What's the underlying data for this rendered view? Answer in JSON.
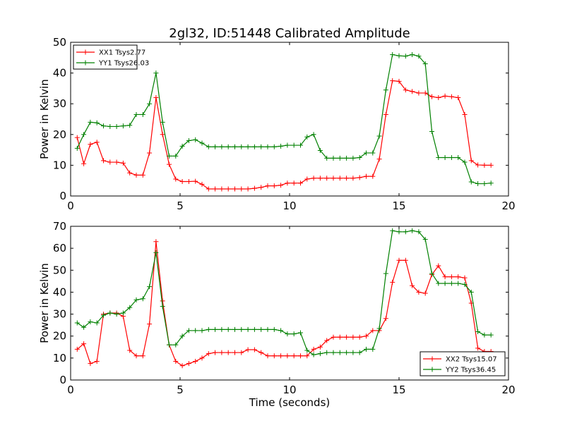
{
  "title": "2gl32, ID:51448 Calibrated Amplitude",
  "chart_data": [
    {
      "type": "line",
      "title": "2gl32, ID:51448 Calibrated Amplitude",
      "xlabel": "",
      "ylabel": "Power in Kelvin",
      "xlim": [
        0,
        20
      ],
      "ylim": [
        0,
        50
      ],
      "xticks": [
        "0",
        "5",
        "10",
        "15",
        "20"
      ],
      "yticks": [
        "0",
        "10",
        "20",
        "30",
        "40",
        "50"
      ],
      "grid": false,
      "legend_position": "upper left",
      "series": [
        {
          "name": "XX1 Tsys2.77",
          "color": "#ff0000",
          "marker": "plus",
          "x": [
            0.3,
            0.6,
            0.9,
            1.2,
            1.5,
            1.8,
            2.1,
            2.4,
            2.7,
            3.0,
            3.3,
            3.6,
            3.9,
            4.2,
            4.5,
            4.8,
            5.1,
            5.4,
            5.7,
            6.0,
            6.3,
            6.6,
            6.9,
            7.2,
            7.5,
            7.8,
            8.1,
            8.4,
            8.7,
            9.0,
            9.3,
            9.6,
            9.9,
            10.2,
            10.5,
            10.8,
            11.1,
            11.4,
            11.7,
            12.0,
            12.3,
            12.6,
            12.9,
            13.2,
            13.5,
            13.8,
            14.1,
            14.4,
            14.7,
            15.0,
            15.3,
            15.6,
            15.9,
            16.2,
            16.5,
            16.8,
            17.1,
            17.4,
            17.7,
            18.0,
            18.3,
            18.6,
            18.9,
            19.2
          ],
          "y": [
            19,
            10.5,
            16.8,
            17.5,
            11.5,
            11,
            11,
            10.7,
            7.5,
            6.8,
            6.8,
            14,
            32,
            20,
            10.3,
            5.5,
            4.7,
            4.7,
            4.8,
            3.8,
            2.3,
            2.3,
            2.3,
            2.3,
            2.3,
            2.3,
            2.3,
            2.5,
            2.8,
            3.3,
            3.3,
            3.5,
            4.2,
            4.2,
            4.2,
            5.5,
            5.8,
            5.8,
            5.8,
            5.8,
            5.8,
            5.8,
            5.8,
            6.0,
            6.4,
            6.4,
            12,
            26.5,
            37.5,
            37.3,
            34.5,
            34,
            33.5,
            33.5,
            32.3,
            32,
            32.5,
            32.3,
            32,
            26.5,
            11.5,
            10.1,
            10,
            10
          ]
        },
        {
          "name": "YY1 Tsys26.03",
          "color": "#008000",
          "marker": "plus",
          "x": [
            0.3,
            0.6,
            0.9,
            1.2,
            1.5,
            1.8,
            2.1,
            2.4,
            2.7,
            3.0,
            3.3,
            3.6,
            3.9,
            4.2,
            4.5,
            4.8,
            5.1,
            5.4,
            5.7,
            6.0,
            6.3,
            6.6,
            6.9,
            7.2,
            7.5,
            7.8,
            8.1,
            8.4,
            8.7,
            9.0,
            9.3,
            9.6,
            9.9,
            10.2,
            10.5,
            10.8,
            11.1,
            11.4,
            11.7,
            12.0,
            12.3,
            12.6,
            12.9,
            13.2,
            13.5,
            13.8,
            14.1,
            14.4,
            14.7,
            15.0,
            15.3,
            15.6,
            15.9,
            16.2,
            16.5,
            16.8,
            17.1,
            17.4,
            17.7,
            18.0,
            18.3,
            18.6,
            18.9,
            19.2
          ],
          "y": [
            15.5,
            20,
            24,
            23.8,
            22.8,
            22.6,
            22.6,
            22.8,
            23,
            26.5,
            26.5,
            30,
            40,
            24,
            13,
            13,
            16.2,
            18,
            18.3,
            17.2,
            16,
            16,
            16,
            16,
            16,
            16,
            16,
            16,
            16,
            16,
            16,
            16.2,
            16.5,
            16.5,
            16.5,
            19.2,
            20,
            14.8,
            12.3,
            12.3,
            12.3,
            12.3,
            12.3,
            12.5,
            14,
            14,
            19.5,
            34.5,
            46,
            45.6,
            45.5,
            46,
            45.5,
            43,
            21,
            12.5,
            12.5,
            12.5,
            12.5,
            11,
            4.6,
            4,
            4,
            4.2
          ]
        }
      ]
    },
    {
      "type": "line",
      "title": "",
      "xlabel": "Time (seconds)",
      "ylabel": "Power in Kelvin",
      "xlim": [
        0,
        20
      ],
      "ylim": [
        0,
        70
      ],
      "xticks": [
        "0",
        "5",
        "10",
        "15",
        "20"
      ],
      "yticks": [
        "0",
        "10",
        "20",
        "30",
        "40",
        "50",
        "60",
        "70"
      ],
      "grid": false,
      "legend_position": "lower right",
      "series": [
        {
          "name": "XX2 Tsys15.07",
          "color": "#ff0000",
          "marker": "plus",
          "x": [
            0.3,
            0.6,
            0.9,
            1.2,
            1.5,
            1.8,
            2.1,
            2.4,
            2.7,
            3.0,
            3.3,
            3.6,
            3.9,
            4.2,
            4.5,
            4.8,
            5.1,
            5.4,
            5.7,
            6.0,
            6.3,
            6.6,
            6.9,
            7.2,
            7.5,
            7.8,
            8.1,
            8.4,
            8.7,
            9.0,
            9.3,
            9.6,
            9.9,
            10.2,
            10.5,
            10.8,
            11.1,
            11.4,
            11.7,
            12.0,
            12.3,
            12.6,
            12.9,
            13.2,
            13.5,
            13.8,
            14.1,
            14.4,
            14.7,
            15.0,
            15.3,
            15.6,
            15.9,
            16.2,
            16.5,
            16.8,
            17.1,
            17.4,
            17.7,
            18.0,
            18.3,
            18.6,
            18.9,
            19.2
          ],
          "y": [
            14,
            16.5,
            7.5,
            8.5,
            30,
            30.5,
            30.5,
            29,
            13.5,
            11,
            11,
            25.5,
            63,
            36,
            16,
            8.5,
            6.5,
            7.5,
            8.5,
            10,
            12,
            12.5,
            12.5,
            12.5,
            12.5,
            12.5,
            13.8,
            13.8,
            12.5,
            11,
            11,
            11,
            11,
            11,
            11,
            11,
            14,
            15,
            18,
            19.5,
            19.5,
            19.5,
            19.5,
            19.5,
            20,
            22.5,
            22.5,
            28,
            44.5,
            54.5,
            54.5,
            43,
            40,
            39.5,
            48,
            52,
            47,
            47,
            47,
            46.5,
            35,
            14.5,
            13,
            13
          ]
        },
        {
          "name": "YY2 Tsys36.45",
          "color": "#008000",
          "marker": "plus",
          "x": [
            0.3,
            0.6,
            0.9,
            1.2,
            1.5,
            1.8,
            2.1,
            2.4,
            2.7,
            3.0,
            3.3,
            3.6,
            3.9,
            4.2,
            4.5,
            4.8,
            5.1,
            5.4,
            5.7,
            6.0,
            6.3,
            6.6,
            6.9,
            7.2,
            7.5,
            7.8,
            8.1,
            8.4,
            8.7,
            9.0,
            9.3,
            9.6,
            9.9,
            10.2,
            10.5,
            10.8,
            11.1,
            11.4,
            11.7,
            12.0,
            12.3,
            12.6,
            12.9,
            13.2,
            13.5,
            13.8,
            14.1,
            14.4,
            14.7,
            15.0,
            15.3,
            15.6,
            15.9,
            16.2,
            16.5,
            16.8,
            17.1,
            17.4,
            17.7,
            18.0,
            18.3,
            18.6,
            18.9,
            19.2
          ],
          "y": [
            26,
            24,
            26.5,
            26,
            29.5,
            30.5,
            30,
            30.5,
            33,
            36.5,
            37,
            42.5,
            58,
            33.5,
            16,
            16,
            20,
            22.5,
            22.5,
            22.5,
            23,
            23,
            23,
            23,
            23,
            23,
            23,
            23,
            23,
            23,
            23,
            22.5,
            21,
            21,
            21.5,
            13.5,
            11.5,
            12,
            12.5,
            12.5,
            12.5,
            12.5,
            12.5,
            12.5,
            14,
            14,
            23.5,
            48.5,
            68,
            67.5,
            67.5,
            68,
            67.5,
            64,
            48.5,
            44,
            44,
            44,
            44,
            43.5,
            40,
            22,
            20.5,
            20.5
          ]
        }
      ]
    }
  ]
}
